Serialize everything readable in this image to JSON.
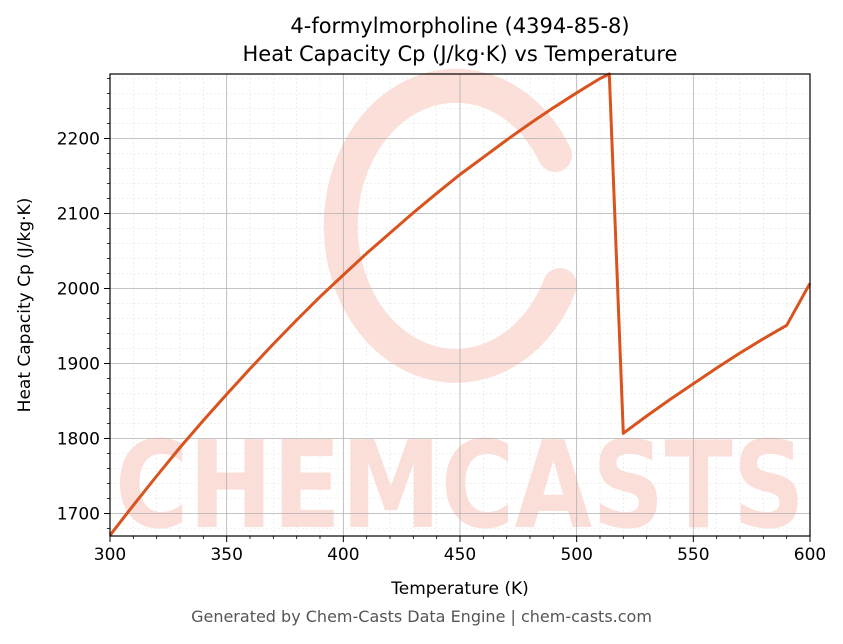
{
  "chart_data": {
    "type": "line",
    "title_line1": "4-formylmorpholine (4394-85-8)",
    "title_line2": "Heat Capacity Cp (J/kg·K) vs Temperature",
    "xlabel": "Temperature (K)",
    "ylabel": "Heat Capacity Cp (J/kg·K)",
    "xlim": [
      300,
      600
    ],
    "ylim": [
      1670,
      2286
    ],
    "x_ticks": [
      300,
      350,
      400,
      450,
      500,
      550,
      600
    ],
    "y_ticks": [
      1700,
      1800,
      1900,
      2000,
      2100,
      2200
    ],
    "grid": true,
    "line_color": "#d9531e",
    "watermark_color": "#fcd9d2",
    "watermark_text": "CHEMCASTS",
    "series": [
      {
        "x": [
          300,
          310,
          320,
          330,
          340,
          350,
          360,
          370,
          380,
          390,
          400,
          410,
          420,
          430,
          440,
          450,
          460,
          470,
          480,
          490,
          500,
          510,
          514,
          520,
          530,
          540,
          550,
          560,
          570,
          580,
          590,
          600
        ],
        "values": [
          1671,
          1711,
          1750,
          1788,
          1824,
          1859,
          1893,
          1926,
          1958,
          1989,
          2018,
          2047,
          2074,
          2101,
          2127,
          2152,
          2175,
          2198,
          2220,
          2241,
          2261,
          2280,
          2286,
          1807,
          1830,
          1852,
          1873,
          1894,
          1914,
          1933,
          1951,
          2007
        ]
      }
    ]
  },
  "footer": "Generated by Chem-Casts Data Engine | chem-casts.com"
}
